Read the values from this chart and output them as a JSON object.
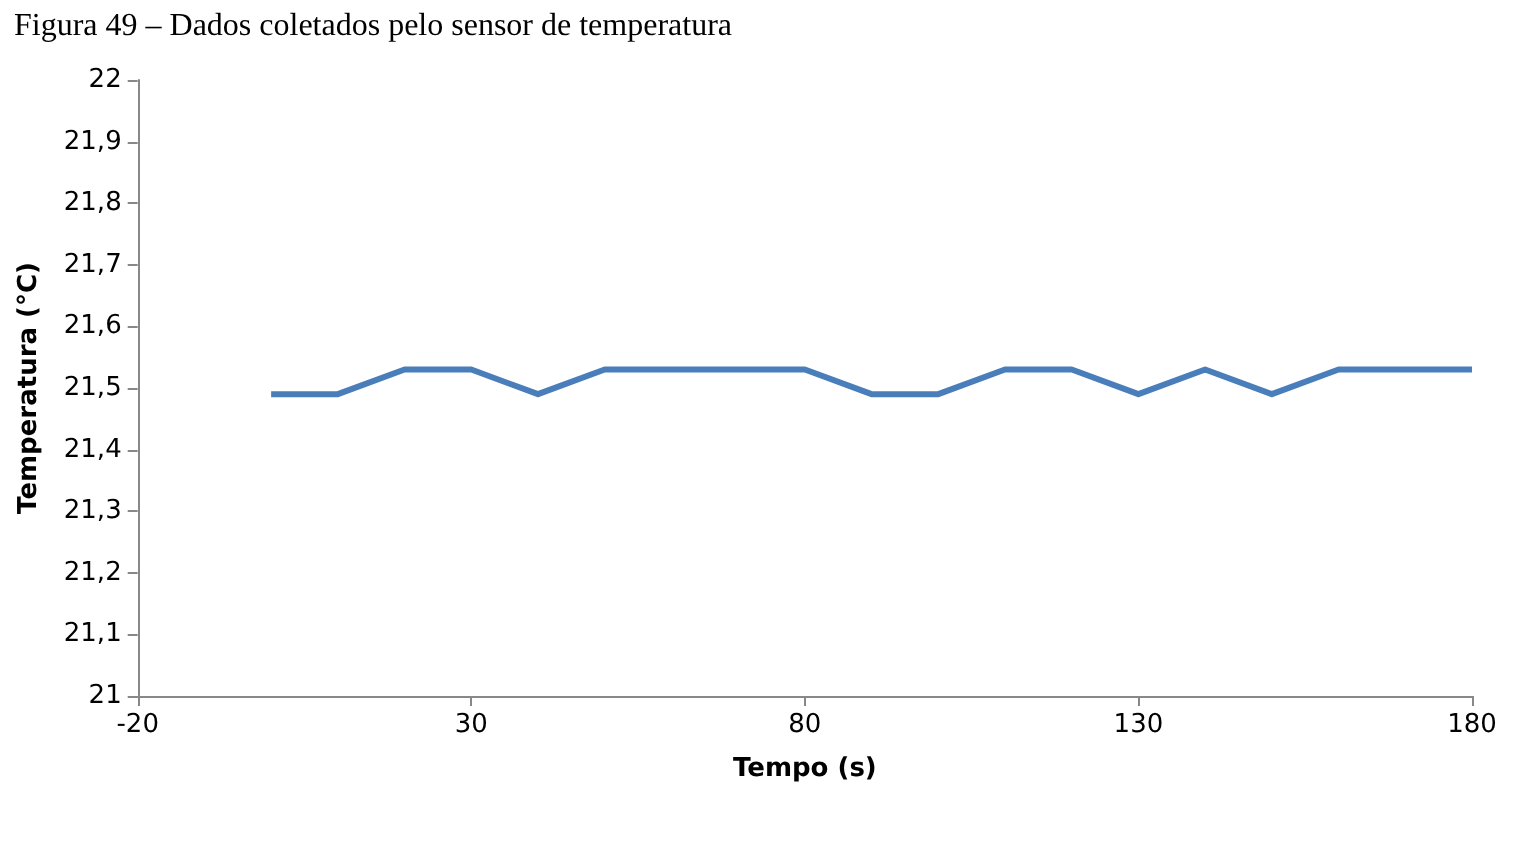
{
  "chart_data": {
    "type": "line",
    "title": "Figura 49 – Dados coletados pelo sensor de temperatura",
    "xlabel": "Tempo (s)",
    "ylabel": "Temperatura (°C)",
    "x": [
      0,
      10,
      20,
      30,
      40,
      50,
      60,
      70,
      80,
      90,
      100,
      110,
      120,
      130,
      140,
      150,
      160,
      170,
      180
    ],
    "series": [
      {
        "color": "#4a7ebb",
        "values": [
          21.49,
          21.49,
          21.53,
          21.53,
          21.49,
          21.53,
          21.53,
          21.53,
          21.53,
          21.49,
          21.49,
          21.53,
          21.53,
          21.49,
          21.53,
          21.49,
          21.53,
          21.53,
          21.53
        ]
      }
    ],
    "xlim": [
      -20,
      180
    ],
    "xticks": [
      -20,
      30,
      80,
      130,
      180
    ],
    "ylim": [
      21,
      22
    ],
    "yticks": [
      21,
      {
        "value": 21.1,
        "label": "21,1"
      },
      {
        "value": 21.2,
        "label": "21,2"
      },
      {
        "value": 21.3,
        "label": "21,3"
      },
      {
        "value": 21.4,
        "label": "21,4"
      },
      {
        "value": 21.5,
        "label": "21,5"
      },
      {
        "value": 21.6,
        "label": "21,6"
      },
      {
        "value": 21.7,
        "label": "21,7"
      },
      {
        "value": 21.8,
        "label": "21,8"
      },
      {
        "value": 21.9,
        "label": "21,9"
      },
      22
    ],
    "grid": false,
    "marker": "none",
    "line_style": "solid"
  }
}
